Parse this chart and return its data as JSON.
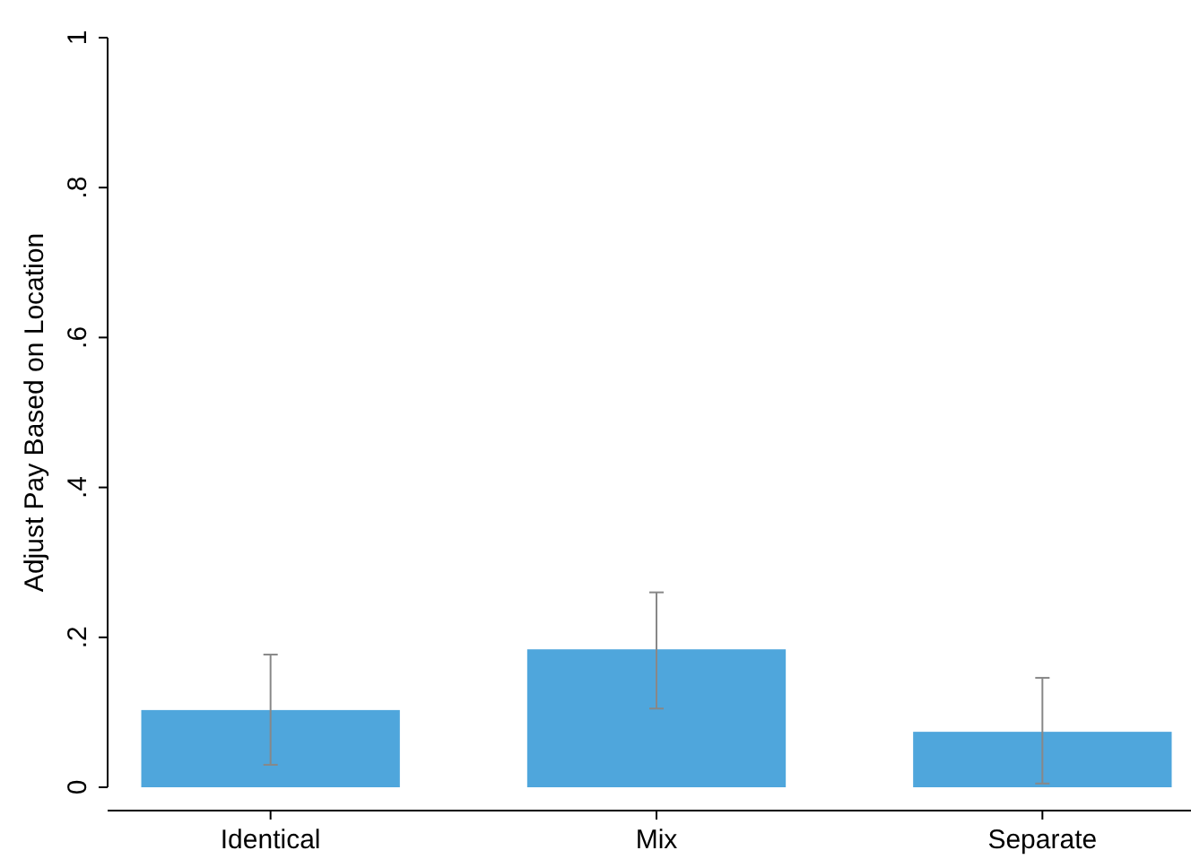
{
  "chart_data": {
    "type": "bar",
    "ylabel": "Adjust Pay Based on Location",
    "categories": [
      "Identical",
      "Mix",
      "Separate"
    ],
    "values": [
      0.103,
      0.184,
      0.074
    ],
    "errors": [
      [
        0.03,
        0.177
      ],
      [
        0.105,
        0.26
      ],
      [
        0.005,
        0.146
      ]
    ],
    "color": "#4fa6dc",
    "ylim": [
      0,
      1
    ],
    "yticks": [
      {
        "value": 0,
        "label": "0"
      },
      {
        "value": 0.2,
        "label": ".2"
      },
      {
        "value": 0.4,
        "label": ".4"
      },
      {
        "value": 0.6,
        "label": ".6"
      },
      {
        "value": 0.8,
        "label": ".8"
      },
      {
        "value": 1,
        "label": "1"
      }
    ],
    "grid": false
  }
}
